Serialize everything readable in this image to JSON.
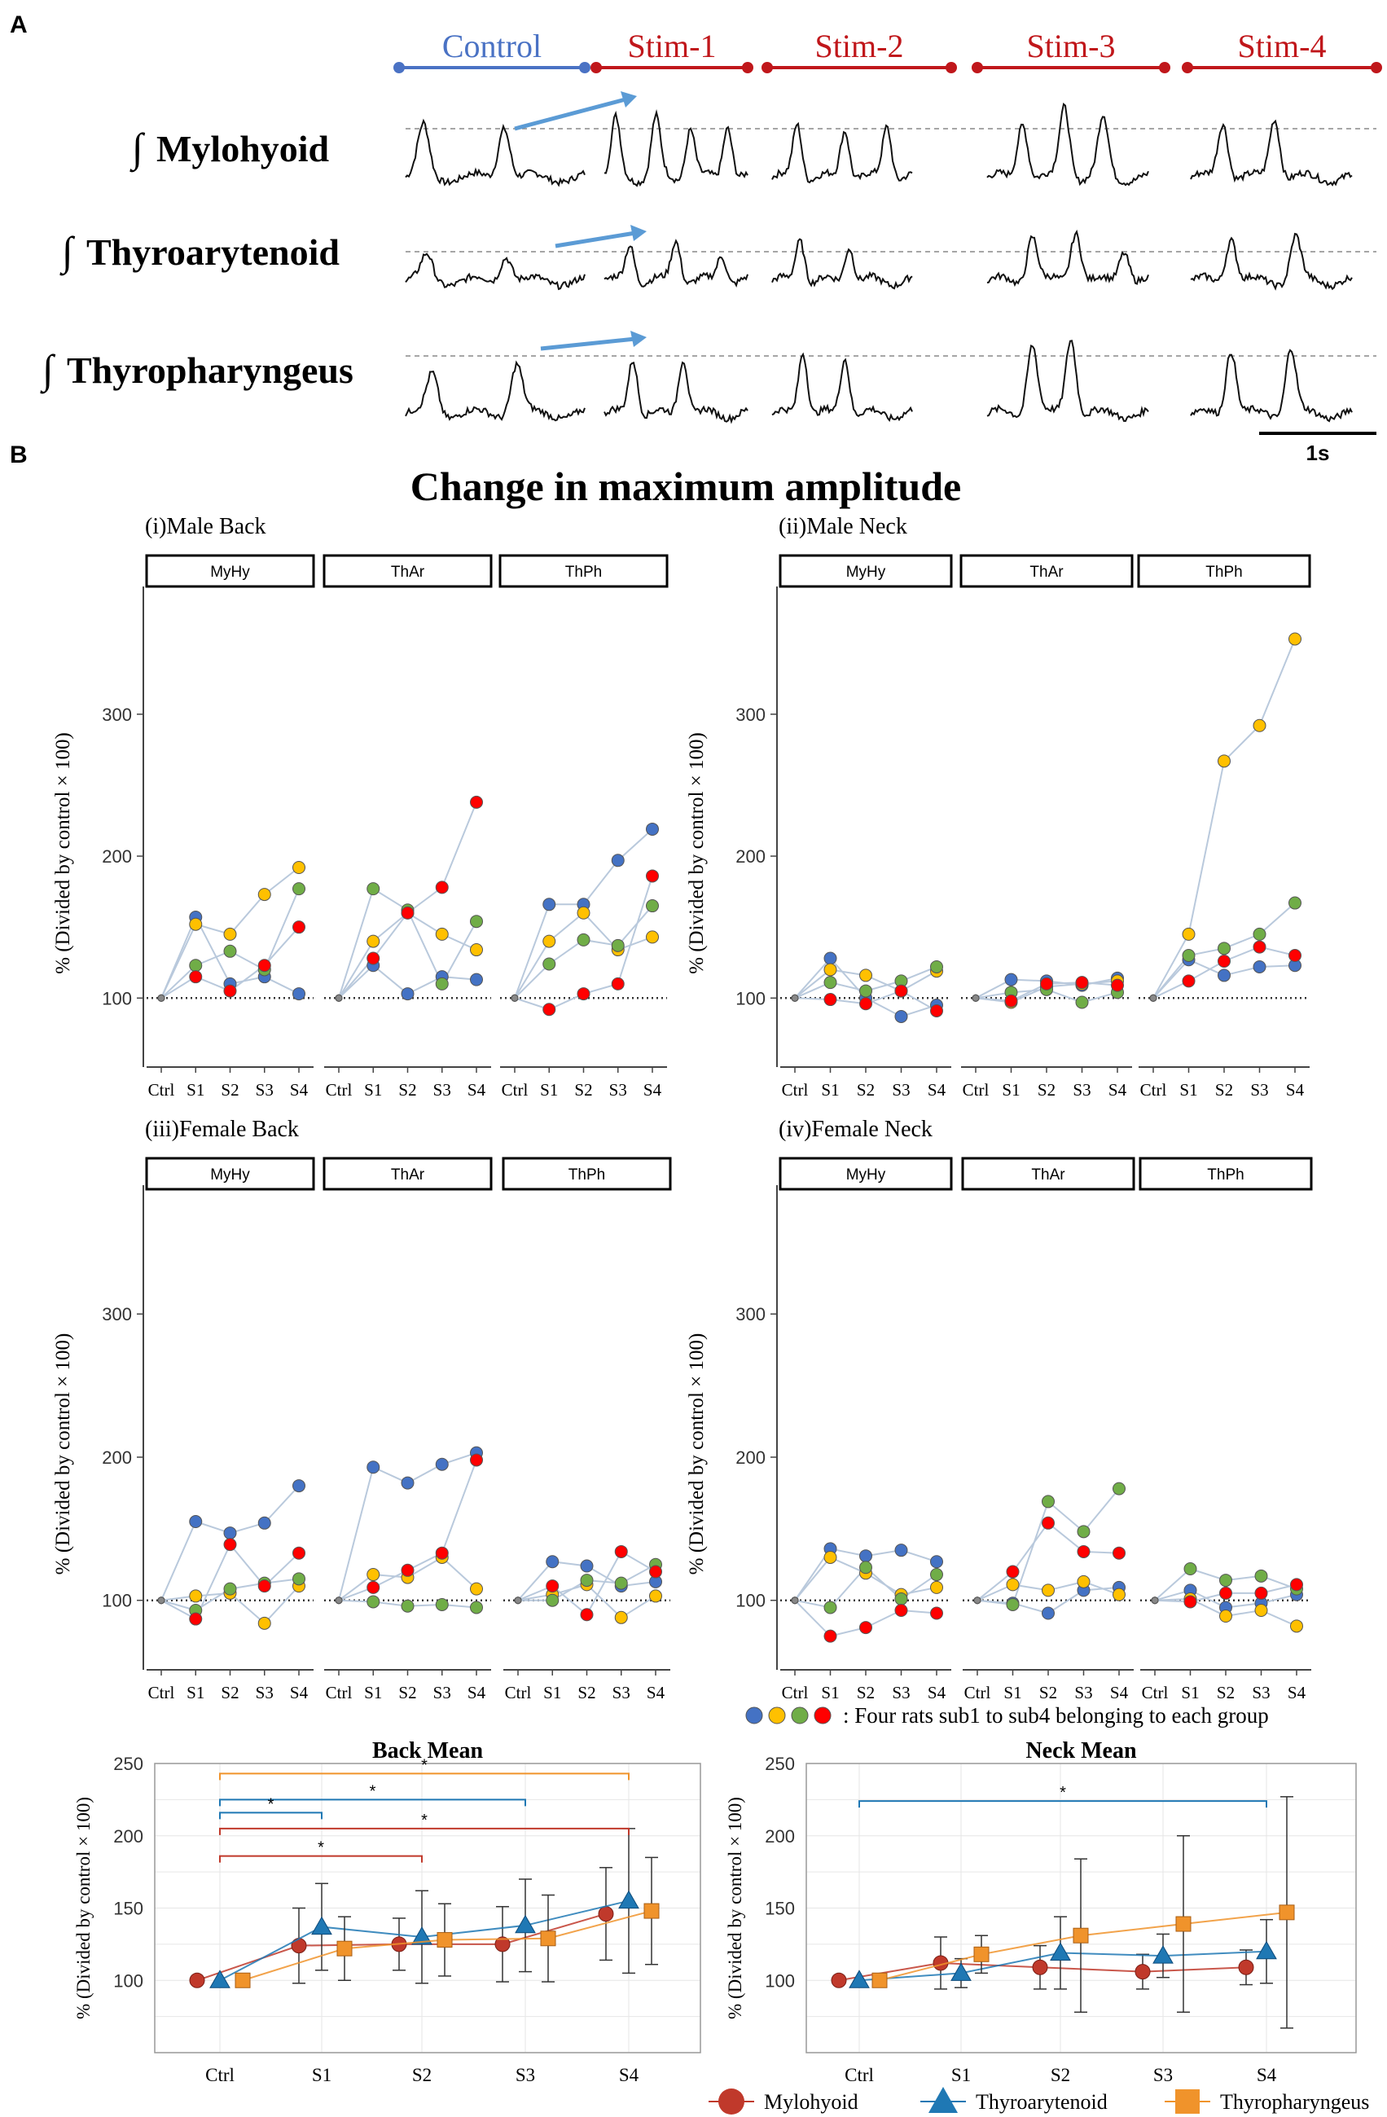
{
  "panel_a": {
    "label": "A",
    "conditions": [
      "Control",
      "Stim-1",
      "Stim-2",
      "Stim-3",
      "Stim-4"
    ],
    "control_color": "#4a72c4",
    "stim_color": "#c0171b",
    "arrow_color": "#5b9bd5",
    "muscles": [
      "Mylohyoid",
      "Thyroarytenoid",
      "Thyropharyngeus"
    ],
    "integral_symbol": "∫",
    "scale_bar": "1s"
  },
  "panel_b": {
    "label": "B",
    "title": "Change in maximum amplitude",
    "ylabel": "% (Divided by control × 100)",
    "x_ticks": [
      "Ctrl",
      "S1",
      "S2",
      "S3",
      "S4"
    ],
    "y_ticks": [
      "100",
      "200",
      "300"
    ],
    "facets": [
      "MyHy",
      "ThAr",
      "ThPh"
    ],
    "subject_colors": [
      "#4472c4",
      "#ffc000",
      "#70ad47",
      "#ff0000"
    ],
    "legend_text": ": Four rats sub1 to sub4 belonging to each group"
  },
  "chart_data": [
    {
      "type": "scatter",
      "title": "(i)Male Back",
      "ylim": [
        60,
        390
      ],
      "facets": {
        "MyHy": [
          [
            100,
            157,
            110,
            115,
            103
          ],
          [
            100,
            152,
            145,
            173,
            192
          ],
          [
            100,
            123,
            133,
            120,
            177
          ],
          [
            100,
            115,
            105,
            123,
            150
          ]
        ],
        "ThAr": [
          [
            100,
            123,
            103,
            115,
            113
          ],
          [
            100,
            140,
            160,
            145,
            134
          ],
          [
            100,
            177,
            162,
            110,
            154
          ],
          [
            100,
            128,
            160,
            178,
            238
          ]
        ],
        "ThPh": [
          [
            100,
            166,
            166,
            197,
            219
          ],
          [
            100,
            140,
            160,
            134,
            143
          ],
          [
            100,
            124,
            141,
            137,
            165
          ],
          [
            100,
            92,
            103,
            110,
            186
          ]
        ]
      }
    },
    {
      "type": "scatter",
      "title": "(ii)Male Neck",
      "ylim": [
        60,
        390
      ],
      "facets": {
        "MyHy": [
          [
            100,
            128,
            100,
            87,
            95
          ],
          [
            100,
            120,
            116,
            105,
            119
          ],
          [
            100,
            111,
            105,
            112,
            122
          ],
          [
            100,
            99,
            96,
            105,
            91
          ]
        ],
        "ThAr": [
          [
            100,
            113,
            112,
            109,
            114
          ],
          [
            100,
            97,
            108,
            110,
            112
          ],
          [
            100,
            104,
            106,
            97,
            104
          ],
          [
            100,
            98,
            110,
            111,
            109
          ]
        ],
        "ThPh": [
          [
            100,
            127,
            116,
            122,
            123
          ],
          [
            100,
            145,
            267,
            292,
            353
          ],
          [
            100,
            130,
            135,
            145,
            167
          ],
          [
            100,
            112,
            126,
            136,
            130
          ]
        ]
      }
    },
    {
      "type": "scatter",
      "title": "(iii)Female Back",
      "ylim": [
        60,
        390
      ],
      "facets": {
        "MyHy": [
          [
            100,
            155,
            147,
            154,
            180
          ],
          [
            100,
            103,
            105,
            84,
            110
          ],
          [
            100,
            93,
            108,
            112,
            115
          ],
          [
            100,
            87,
            139,
            110,
            133
          ]
        ],
        "ThAr": [
          [
            100,
            193,
            182,
            195,
            203
          ],
          [
            100,
            118,
            116,
            130,
            108
          ],
          [
            100,
            99,
            96,
            97,
            95
          ],
          [
            100,
            109,
            121,
            133,
            198
          ]
        ],
        "ThPh": [
          [
            100,
            127,
            124,
            110,
            113
          ],
          [
            100,
            104,
            111,
            88,
            103
          ],
          [
            100,
            100,
            114,
            112,
            125
          ],
          [
            100,
            110,
            90,
            134,
            120
          ]
        ]
      }
    },
    {
      "type": "scatter",
      "title": "(iv)Female Neck",
      "ylim": [
        60,
        390
      ],
      "facets": {
        "MyHy": [
          [
            100,
            136,
            131,
            135,
            127
          ],
          [
            100,
            130,
            119,
            104,
            109
          ],
          [
            100,
            95,
            123,
            101,
            118
          ],
          [
            100,
            75,
            81,
            93,
            91
          ]
        ],
        "ThAr": [
          [
            100,
            98,
            91,
            107,
            109
          ],
          [
            100,
            111,
            107,
            113,
            104
          ],
          [
            100,
            97,
            169,
            148,
            178
          ],
          [
            100,
            120,
            154,
            134,
            133
          ]
        ],
        "ThPh": [
          [
            100,
            107,
            95,
            98,
            104
          ],
          [
            100,
            101,
            89,
            93,
            82
          ],
          [
            100,
            122,
            114,
            117,
            108
          ],
          [
            100,
            99,
            105,
            105,
            111
          ]
        ]
      }
    },
    {
      "type": "line",
      "title": "Back Mean",
      "categories": [
        "Ctrl",
        "S1",
        "S2",
        "S3",
        "S4"
      ],
      "ylabel": "% (Divided by control × 100)",
      "ylim": [
        50,
        250
      ],
      "y_ticks": [
        "100",
        "150",
        "200",
        "250"
      ],
      "series": [
        {
          "name": "Mylohyoid",
          "values": [
            100,
            124,
            125,
            125,
            146
          ],
          "err": [
            0,
            26,
            18,
            26,
            32
          ]
        },
        {
          "name": "Thyroarytenoid",
          "values": [
            100,
            137,
            130,
            138,
            155
          ],
          "err": [
            0,
            30,
            32,
            32,
            50
          ]
        },
        {
          "name": "Thyropharyngeus",
          "values": [
            100,
            122,
            128,
            129,
            148
          ],
          "err": [
            0,
            22,
            25,
            30,
            37
          ]
        }
      ],
      "significance": [
        {
          "series": "Thyropharyngeus",
          "from": "Ctrl",
          "to": "S4",
          "label": "*"
        },
        {
          "series": "Thyroarytenoid",
          "from": "Ctrl",
          "to": "S3",
          "label": "*"
        },
        {
          "series": "Thyroarytenoid",
          "from": "Ctrl",
          "to": "S1",
          "label": "*"
        },
        {
          "series": "Mylohyoid",
          "from": "Ctrl",
          "to": "S4",
          "label": "*"
        },
        {
          "series": "Mylohyoid",
          "from": "Ctrl",
          "to": "S2",
          "label": "*"
        }
      ]
    },
    {
      "type": "line",
      "title": "Neck Mean",
      "categories": [
        "Ctrl",
        "S1",
        "S2",
        "S3",
        "S4"
      ],
      "ylabel": "% (Divided by control × 100)",
      "ylim": [
        50,
        250
      ],
      "y_ticks": [
        "100",
        "150",
        "200",
        "250"
      ],
      "series": [
        {
          "name": "Mylohyoid",
          "values": [
            100,
            112,
            109,
            106,
            109
          ],
          "err": [
            0,
            18,
            15,
            12,
            12
          ]
        },
        {
          "name": "Thyroarytenoid",
          "values": [
            100,
            105,
            119,
            117,
            120
          ],
          "err": [
            0,
            10,
            25,
            15,
            22
          ]
        },
        {
          "name": "Thyropharyngeus",
          "values": [
            100,
            118,
            131,
            139,
            147
          ],
          "err": [
            0,
            13,
            53,
            61,
            80
          ]
        }
      ],
      "significance": [
        {
          "series": "Thyroarytenoid",
          "from": "Ctrl",
          "to": "S4",
          "label": "*"
        }
      ]
    }
  ],
  "legend": {
    "items": [
      "Mylohyoid",
      "Thyroarytenoid",
      "Thyropharyngeus"
    ],
    "colors": [
      "#c0392b",
      "#1f78b4",
      "#f0932b"
    ]
  }
}
